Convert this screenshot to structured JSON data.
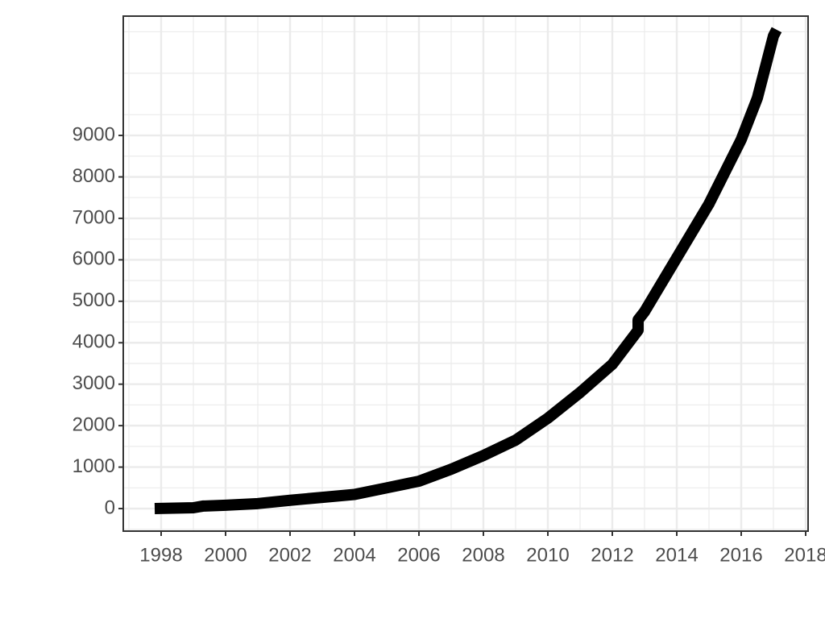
{
  "chart_data": {
    "type": "line",
    "x": [
      1997.8,
      1999,
      1999.3,
      2000,
      2001,
      2002,
      2003,
      2004,
      2005,
      2006,
      2007,
      2008,
      2009,
      2010,
      2011,
      2012,
      2012.8,
      2012.8,
      2013,
      2014,
      2015,
      2016,
      2016.5,
      2017,
      2017.1
    ],
    "values": [
      0,
      20,
      60,
      80,
      120,
      200,
      270,
      340,
      500,
      660,
      950,
      1280,
      1650,
      2180,
      2800,
      3480,
      4300,
      4550,
      4750,
      6050,
      7350,
      8900,
      9900,
      11400,
      11550
    ],
    "color": "#000000",
    "xlim": [
      1996.825,
      2018.075
    ],
    "xticks": [
      1998,
      2000,
      2002,
      2004,
      2006,
      2008,
      2010,
      2012,
      2014,
      2016,
      2018
    ],
    "ylim": [
      -544,
      11878
    ],
    "yticks": [
      0,
      1000,
      2000,
      3000,
      4000,
      5000,
      6000,
      7000,
      8000,
      9000
    ],
    "grid": true
  }
}
